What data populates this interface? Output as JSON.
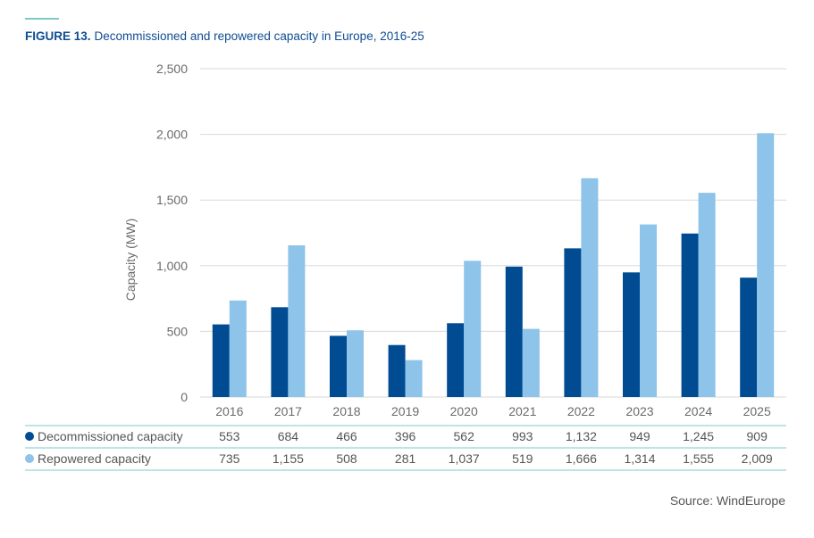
{
  "figure": {
    "label": "FIGURE 13.",
    "title": "Decommissioned and repowered capacity in Europe, 2016-25",
    "source": "Source: WindEurope"
  },
  "colors": {
    "accent_rule": "#7ec8c8",
    "title": "#0e4c92",
    "decommissioned": "#004b91",
    "repowered": "#8ec3ea",
    "grid": "#d9d9d9",
    "table_line": "#7ec8c8"
  },
  "chart_data": {
    "type": "bar",
    "title": "Decommissioned and repowered capacity in Europe, 2016-25",
    "xlabel": "",
    "ylabel": "Capacity (MW)",
    "ylim": [
      0,
      2500
    ],
    "yticks": [
      0,
      500,
      1000,
      1500,
      2000,
      2500
    ],
    "ytick_labels": [
      "0",
      "500",
      "1,000",
      "1,500",
      "2,000",
      "2,500"
    ],
    "grid": true,
    "legend_position": "bottom-table",
    "categories": [
      "2016",
      "2017",
      "2018",
      "2019",
      "2020",
      "2021",
      "2022",
      "2023",
      "2024",
      "2025"
    ],
    "series": [
      {
        "name": "Decommissioned capacity",
        "values": [
          553,
          684,
          466,
          396,
          562,
          993,
          1132,
          949,
          1245,
          909
        ],
        "labels": [
          "553",
          "684",
          "466",
          "396",
          "562",
          "993",
          "1,132",
          "949",
          "1,245",
          "909"
        ]
      },
      {
        "name": "Repowered capacity",
        "values": [
          735,
          1155,
          508,
          281,
          1037,
          519,
          1666,
          1314,
          1555,
          2009
        ],
        "labels": [
          "735",
          "1,155",
          "508",
          "281",
          "1,037",
          "519",
          "1,666",
          "1,314",
          "1,555",
          "2,009"
        ]
      }
    ]
  }
}
